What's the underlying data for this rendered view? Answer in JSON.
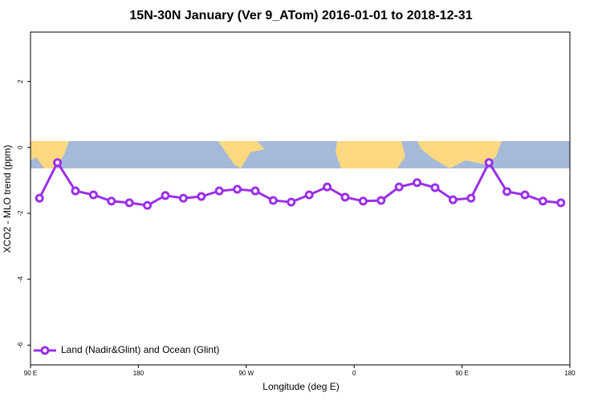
{
  "chart_data": {
    "type": "line",
    "title": "15N-30N January (Ver 9_ATom)   2016-01-01 to 2018-12-31",
    "x_label": "Longitude (deg E)",
    "y_label": "XCO2 - MLO trend (ppm)",
    "x": [
      97.5,
      112.5,
      127.5,
      142.5,
      157.5,
      172.5,
      187.5,
      202.5,
      217.5,
      232.5,
      247.5,
      262.5,
      277.5,
      292.5,
      307.5,
      322.5,
      337.5,
      352.5,
      367.5,
      382.5,
      397.5,
      412.5,
      427.5,
      442.5,
      457.5,
      472.5,
      487.5,
      502.5,
      517.5,
      532.5
    ],
    "series": [
      {
        "name": "Land (Nadir&Glint) and Ocean (Glint)",
        "color": "#9b30e8",
        "values": [
          -1.54,
          -0.46,
          -1.32,
          -1.44,
          -1.63,
          -1.68,
          -1.76,
          -1.46,
          -1.54,
          -1.49,
          -1.32,
          -1.27,
          -1.32,
          -1.61,
          -1.66,
          -1.44,
          -1.2,
          -1.51,
          -1.63,
          -1.61,
          -1.2,
          -1.07,
          -1.22,
          -1.59,
          -1.54,
          -0.46,
          -1.34,
          -1.44,
          -1.63,
          -1.68
        ]
      }
    ],
    "xlim": [
      90,
      540
    ],
    "xticks": [
      {
        "value": 90,
        "label": "90 E"
      },
      {
        "value": 180,
        "label": "180"
      },
      {
        "value": 270,
        "label": "90 W"
      },
      {
        "value": 360,
        "label": "0"
      },
      {
        "value": 450,
        "label": "90 E"
      },
      {
        "value": 540,
        "label": "180"
      }
    ],
    "ylim": [
      -6.6,
      3.5
    ],
    "yticks": [
      2,
      0,
      -2,
      -4,
      -6
    ],
    "legend": "bottom-left"
  }
}
